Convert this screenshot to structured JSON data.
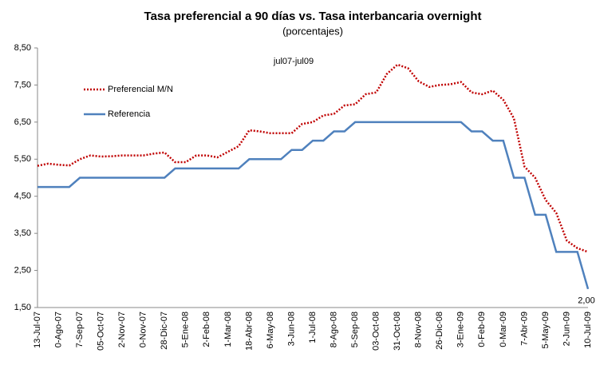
{
  "chart_data": {
    "type": "line",
    "title": "Tasa preferencial a 90 días vs. Tasa interbancaria overnight",
    "subtitle": "(porcentajes)",
    "annotation": "jul07-jul09",
    "categories": [
      "13-Jul-07",
      null,
      "0-Ago-07",
      null,
      "7-Sep-07",
      null,
      "05-Oct-07",
      null,
      "2-Nov-07",
      null,
      "0-Nov-07",
      null,
      "28-Dic-07",
      null,
      "5-Ene-08",
      null,
      "2-Feb-08",
      null,
      "1-Mar-08",
      null,
      "18-Abr-08",
      null,
      "6-May-08",
      null,
      "3-Jun-08",
      null,
      "1-Jul-08",
      null,
      "8-Ago-08",
      null,
      "5-Sep-08",
      null,
      "03-Oct-08",
      null,
      "31-Oct-08",
      null,
      "8-Nov-08",
      null,
      "26-Dic-08",
      null,
      "3-Ene-09",
      null,
      "0-Feb-09",
      null,
      "0-Mar-09",
      null,
      "7-Abr-09",
      null,
      "5-May-09",
      null,
      "2-Jun-09",
      null,
      "10-Jul-09"
    ],
    "series": [
      {
        "name": "Preferencial M/N",
        "color": "#c00000",
        "dashed": true,
        "values": [
          5.32,
          5.38,
          5.35,
          5.33,
          5.5,
          5.6,
          5.57,
          5.58,
          5.6,
          5.6,
          5.6,
          5.65,
          5.68,
          5.42,
          5.42,
          5.6,
          5.6,
          5.55,
          5.7,
          5.85,
          6.28,
          6.25,
          6.2,
          6.2,
          6.2,
          6.45,
          6.5,
          6.68,
          6.72,
          6.95,
          6.98,
          7.25,
          7.3,
          7.8,
          8.05,
          7.95,
          7.6,
          7.45,
          7.5,
          7.52,
          7.58,
          7.3,
          7.25,
          7.35,
          7.1,
          6.6,
          5.3,
          5.0,
          4.4,
          4.05,
          3.3,
          3.1,
          3.0
        ]
      },
      {
        "name": "Referencia",
        "color": "#4f81bd",
        "dashed": false,
        "values": [
          4.75,
          4.75,
          4.75,
          4.75,
          5.0,
          5.0,
          5.0,
          5.0,
          5.0,
          5.0,
          5.0,
          5.0,
          5.0,
          5.25,
          5.25,
          5.25,
          5.25,
          5.25,
          5.25,
          5.25,
          5.5,
          5.5,
          5.5,
          5.5,
          5.75,
          5.75,
          6.0,
          6.0,
          6.25,
          6.25,
          6.5,
          6.5,
          6.5,
          6.5,
          6.5,
          6.5,
          6.5,
          6.5,
          6.5,
          6.5,
          6.5,
          6.25,
          6.25,
          6.0,
          6.0,
          5.0,
          5.0,
          4.0,
          4.0,
          3.0,
          3.0,
          3.0,
          2.0
        ],
        "value_labels": [
          null,
          null,
          null,
          null,
          null,
          null,
          null,
          null,
          null,
          null,
          null,
          null,
          null,
          null,
          null,
          null,
          null,
          null,
          null,
          null,
          null,
          null,
          null,
          null,
          null,
          null,
          null,
          null,
          null,
          null,
          null,
          null,
          null,
          null,
          null,
          null,
          null,
          null,
          null,
          null,
          null,
          null,
          null,
          null,
          null,
          null,
          null,
          null,
          null,
          null,
          null,
          null,
          "2,00"
        ]
      }
    ],
    "ylim": [
      1.5,
      8.5
    ],
    "yticks": [
      {
        "value": 1.5,
        "label": "1,50"
      },
      {
        "value": 2.5,
        "label": "2,50"
      },
      {
        "value": 3.5,
        "label": "3,50"
      },
      {
        "value": 4.5,
        "label": "4,50"
      },
      {
        "value": 5.5,
        "label": "5,50"
      },
      {
        "value": 6.5,
        "label": "6,50"
      },
      {
        "value": 7.5,
        "label": "7,50"
      },
      {
        "value": 8.5,
        "label": "8,50"
      }
    ],
    "grid": false,
    "legend": "upper left"
  }
}
